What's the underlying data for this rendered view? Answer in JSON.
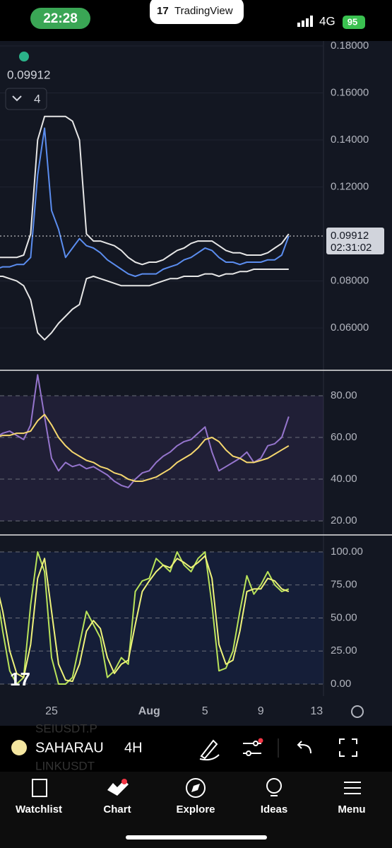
{
  "status_bar": {
    "time": "22:28",
    "app_name": "TradingView",
    "network": "4G",
    "battery": "95"
  },
  "legend": {
    "indicator_count": "4"
  },
  "time_axis": {
    "categories": [
      null,
      null,
      null,
      null,
      null,
      null,
      null,
      null,
      "25",
      null,
      null,
      null,
      null,
      null,
      null,
      null,
      null,
      null,
      null,
      null,
      null,
      null,
      "Aug",
      null,
      null,
      null,
      null,
      null,
      null,
      null,
      "5",
      null,
      null,
      null,
      null,
      null,
      null,
      null,
      "9",
      null,
      null,
      null,
      null,
      null,
      null,
      null,
      "13"
    ]
  },
  "chart_data": [
    {
      "type": "line",
      "ylim": [
        0.0426,
        0.18
      ],
      "yticks": [
        {
          "value": 0.18,
          "label": "0.18000"
        },
        {
          "value": 0.16,
          "label": "0.16000"
        },
        {
          "value": 0.14,
          "label": "0.14000"
        },
        {
          "value": 0.12,
          "label": "0.12000"
        },
        {
          "value": 0.08,
          "label": "0.08000"
        },
        {
          "value": 0.06,
          "label": "0.06000"
        }
      ],
      "price_tag": {
        "value": 0.09912,
        "label": "0.09912"
      },
      "countdown": "02:31:02",
      "series": [
        {
          "color": "#e6e6e6",
          "values": [
            0.09,
            0.09,
            0.09,
            0.09,
            0.091,
            0.1,
            0.14,
            0.15,
            0.15,
            0.15,
            0.15,
            0.148,
            0.14,
            0.1,
            0.097,
            0.097,
            0.096,
            0.095,
            0.093,
            0.09,
            0.088,
            0.087,
            0.088,
            0.088,
            0.089,
            0.091,
            0.093,
            0.094,
            0.096,
            0.097,
            0.097,
            0.097,
            0.095,
            0.093,
            0.092,
            0.092,
            0.091,
            0.091,
            0.091,
            0.092,
            0.094,
            0.096,
            0.1,
            null,
            null,
            null,
            null
          ]
        },
        {
          "color": "#e6e6e6",
          "values": [
            0.082,
            0.082,
            0.081,
            0.08,
            0.078,
            0.072,
            0.058,
            0.055,
            0.058,
            0.062,
            0.065,
            0.068,
            0.07,
            0.081,
            0.082,
            0.081,
            0.08,
            0.079,
            0.078,
            0.078,
            0.078,
            0.078,
            0.078,
            0.079,
            0.08,
            0.081,
            0.081,
            0.082,
            0.082,
            0.082,
            0.083,
            0.083,
            0.082,
            0.083,
            0.083,
            0.084,
            0.084,
            0.085,
            0.085,
            0.085,
            0.085,
            0.085,
            0.085,
            null,
            null,
            null,
            null
          ]
        },
        {
          "color": "#5b8def",
          "values": [
            0.085,
            0.086,
            0.086,
            0.087,
            0.087,
            0.09,
            0.125,
            0.145,
            0.11,
            0.102,
            0.09,
            0.094,
            0.098,
            0.095,
            0.094,
            0.092,
            0.089,
            0.087,
            0.085,
            0.083,
            0.082,
            0.083,
            0.083,
            0.083,
            0.085,
            0.086,
            0.087,
            0.089,
            0.09,
            0.092,
            0.094,
            0.093,
            0.09,
            0.088,
            0.088,
            0.087,
            0.088,
            0.088,
            0.088,
            0.089,
            0.089,
            0.091,
            0.0991,
            null,
            null,
            null,
            null
          ]
        }
      ]
    },
    {
      "type": "line",
      "ylim": [
        13.6,
        91.5
      ],
      "yticks": [
        {
          "value": 80,
          "label": "80.00"
        },
        {
          "value": 60,
          "label": "60.00"
        },
        {
          "value": 40,
          "label": "40.00"
        },
        {
          "value": 20,
          "label": "20.00"
        }
      ],
      "series": [
        {
          "color": "#9575cd",
          "values": [
            60,
            62,
            63,
            61,
            59,
            66,
            90,
            70,
            50,
            44,
            48,
            46,
            47,
            45,
            46,
            44,
            42,
            39,
            37,
            36,
            40,
            43,
            44,
            48,
            51,
            53,
            56,
            58,
            59,
            62,
            65,
            53,
            44,
            46,
            48,
            50,
            53,
            48,
            50,
            56,
            57,
            60,
            70,
            null,
            null,
            null,
            null
          ]
        },
        {
          "color": "#f5d76e",
          "values": [
            60,
            61,
            61,
            62,
            62,
            63,
            68,
            71,
            66,
            60,
            56,
            53,
            51,
            49,
            48,
            46,
            45,
            43,
            42,
            40,
            39,
            39,
            40,
            41,
            43,
            45,
            48,
            50,
            52,
            55,
            59,
            60,
            58,
            54,
            51,
            50,
            48,
            48,
            49,
            50,
            52,
            54,
            56,
            null,
            null,
            null,
            null
          ]
        }
      ]
    },
    {
      "type": "line",
      "ylim": [
        -9.1,
        112.3
      ],
      "yticks": [
        {
          "value": 100,
          "label": "100.00"
        },
        {
          "value": 75,
          "label": "75.00"
        },
        {
          "value": 50,
          "label": "50.00"
        },
        {
          "value": 25,
          "label": "25.00"
        },
        {
          "value": 0,
          "label": "0.00"
        }
      ],
      "series": [
        {
          "color": "#b9e35a",
          "values": [
            75,
            40,
            10,
            0,
            5,
            60,
            100,
            85,
            20,
            0,
            0,
            5,
            30,
            55,
            45,
            35,
            5,
            10,
            20,
            15,
            70,
            78,
            80,
            95,
            90,
            85,
            100,
            90,
            85,
            95,
            100,
            60,
            10,
            12,
            25,
            55,
            82,
            68,
            75,
            85,
            75,
            70,
            72,
            null,
            null,
            null,
            null
          ]
        },
        {
          "color": "#eef27a",
          "values": [
            78,
            55,
            25,
            8,
            5,
            30,
            80,
            95,
            55,
            15,
            3,
            2,
            15,
            40,
            48,
            42,
            20,
            8,
            15,
            18,
            45,
            70,
            78,
            85,
            90,
            88,
            95,
            92,
            88,
            92,
            97,
            80,
            30,
            15,
            18,
            40,
            70,
            72,
            72,
            80,
            78,
            72,
            70,
            null,
            null,
            null,
            null
          ]
        }
      ]
    }
  ],
  "toolbar": {
    "symbol": "SAHARAU",
    "interval": "4H",
    "background_symbols": [
      "SEIUSDT.P",
      "LINKUSDT"
    ]
  },
  "nav": {
    "items": [
      "Watchlist",
      "Chart",
      "Explore",
      "Ideas",
      "Menu"
    ]
  }
}
